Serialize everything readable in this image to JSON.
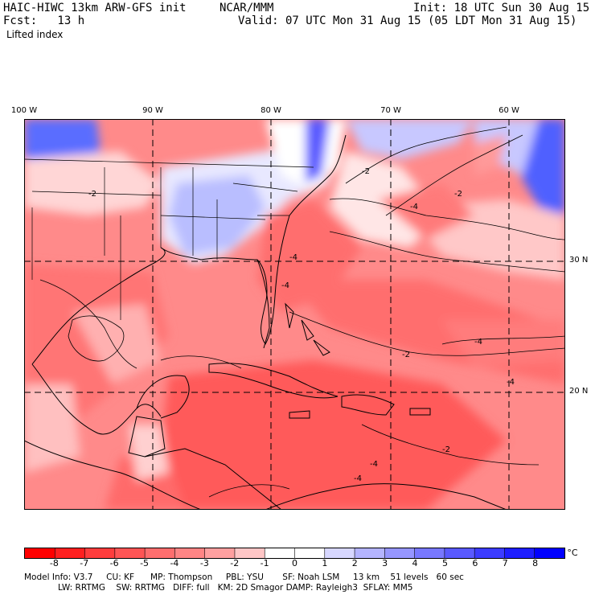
{
  "header": {
    "model": "HAIC-HIWC 13km ARW-GFS init",
    "org": "NCAR/MMM",
    "init": "Init: 18 UTC Sun 30 Aug 15",
    "fcst": "Fcst:   13 h",
    "valid": "Valid: 07 UTC Mon 31 Aug 15 (05 LDT Mon 31 Aug 15)",
    "field": "Lifted index"
  },
  "axes": {
    "lon_labels": [
      {
        "text": "100 W",
        "lon": -100
      },
      {
        "text": "90 W",
        "lon": -90
      },
      {
        "text": "80 W",
        "lon": -80
      },
      {
        "text": "70 W",
        "lon": -70
      },
      {
        "text": "60 W",
        "lon": -60
      }
    ],
    "lat_labels": [
      {
        "text": "30 N",
        "lat": 30
      },
      {
        "text": "20 N",
        "lat": 20
      }
    ],
    "lon_range": [
      -102,
      -56
    ],
    "lat_range": [
      10,
      41
    ]
  },
  "colorbar": {
    "labels": [
      "-8",
      "-7",
      "-6",
      "-5",
      "-4",
      "-3",
      "-2",
      "-1",
      "0",
      "1",
      "2",
      "3",
      "4",
      "5",
      "6",
      "7",
      "8"
    ],
    "unit": "°C",
    "colors": [
      "#ff0000",
      "#ff2020",
      "#ff3d3d",
      "#ff5555",
      "#ff6e6e",
      "#ff8585",
      "#ffa0a0",
      "#ffc6c6",
      "#ffffff",
      "#ffffff",
      "#d7d7ff",
      "#b4b4ff",
      "#9696ff",
      "#7878ff",
      "#5a5aff",
      "#3c3cff",
      "#1e1eff",
      "#0000ff"
    ]
  },
  "contour_labels": [
    "-2",
    "-4",
    "-2",
    "-4",
    "-2",
    "-2",
    "-4",
    "-4",
    "-2",
    "-4",
    "-4",
    "-4"
  ],
  "model_info": {
    "line1": "Model Info: V3.7     CU: KF      MP: Thompson     PBL: YSU       SF: Noah LSM     13 km    51 levels   60 sec",
    "line2": "LW: RRTMG    SW: RRTMG   DIFF: full   KM: 2D Smagor DAMP: Rayleigh3  SFLAY: MM5"
  }
}
